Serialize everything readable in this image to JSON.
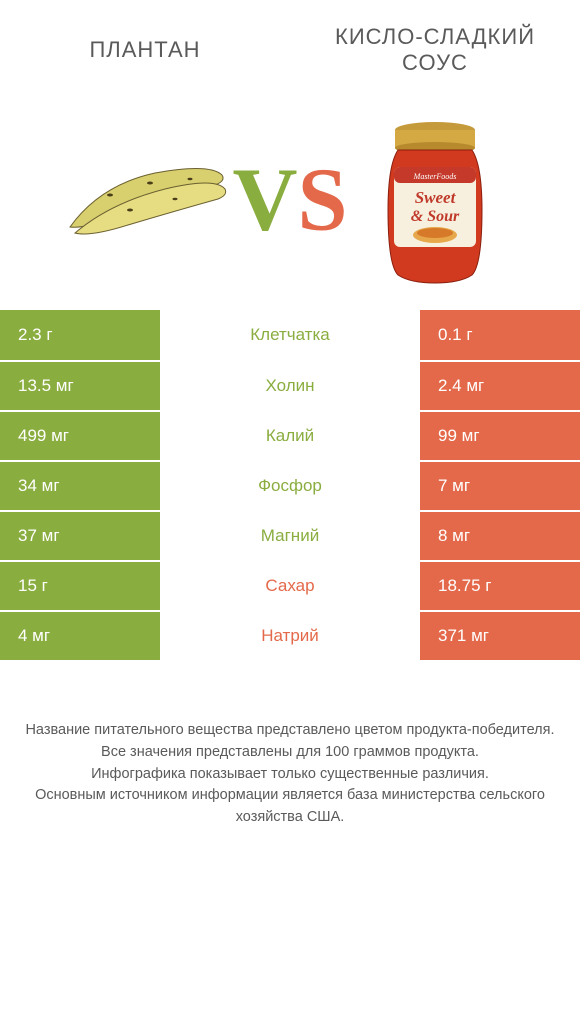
{
  "header": {
    "left_title": "ПЛАНТАН",
    "right_title": "КИСЛО-СЛАДКИЙ СОУС"
  },
  "vs": {
    "v": "V",
    "s": "S"
  },
  "colors": {
    "green": "#8aad3f",
    "orange": "#e4694a",
    "text": "#5a5a5a",
    "bg": "#ffffff"
  },
  "jar_label": {
    "brand": "MasterFoods",
    "line1": "Sweet",
    "line2": "& Sour"
  },
  "rows": [
    {
      "left": "2.3 г",
      "label": "Клетчатка",
      "right": "0.1 г",
      "winner": "left"
    },
    {
      "left": "13.5 мг",
      "label": "Холин",
      "right": "2.4 мг",
      "winner": "left"
    },
    {
      "left": "499 мг",
      "label": "Калий",
      "right": "99 мг",
      "winner": "left"
    },
    {
      "left": "34 мг",
      "label": "Фосфор",
      "right": "7 мг",
      "winner": "left"
    },
    {
      "left": "37 мг",
      "label": "Магний",
      "right": "8 мг",
      "winner": "left"
    },
    {
      "left": "15 г",
      "label": "Сахар",
      "right": "18.75 г",
      "winner": "right"
    },
    {
      "left": "4 мг",
      "label": "Натрий",
      "right": "371 мг",
      "winner": "right"
    }
  ],
  "footer": {
    "line1": "Название питательного вещества представлено цветом продукта-победителя.",
    "line2": "Все значения представлены для 100 граммов продукта.",
    "line3": "Инфографика показывает только существенные различия.",
    "line4": "Основным источником информации является база министерства сельского хозяйства США."
  }
}
